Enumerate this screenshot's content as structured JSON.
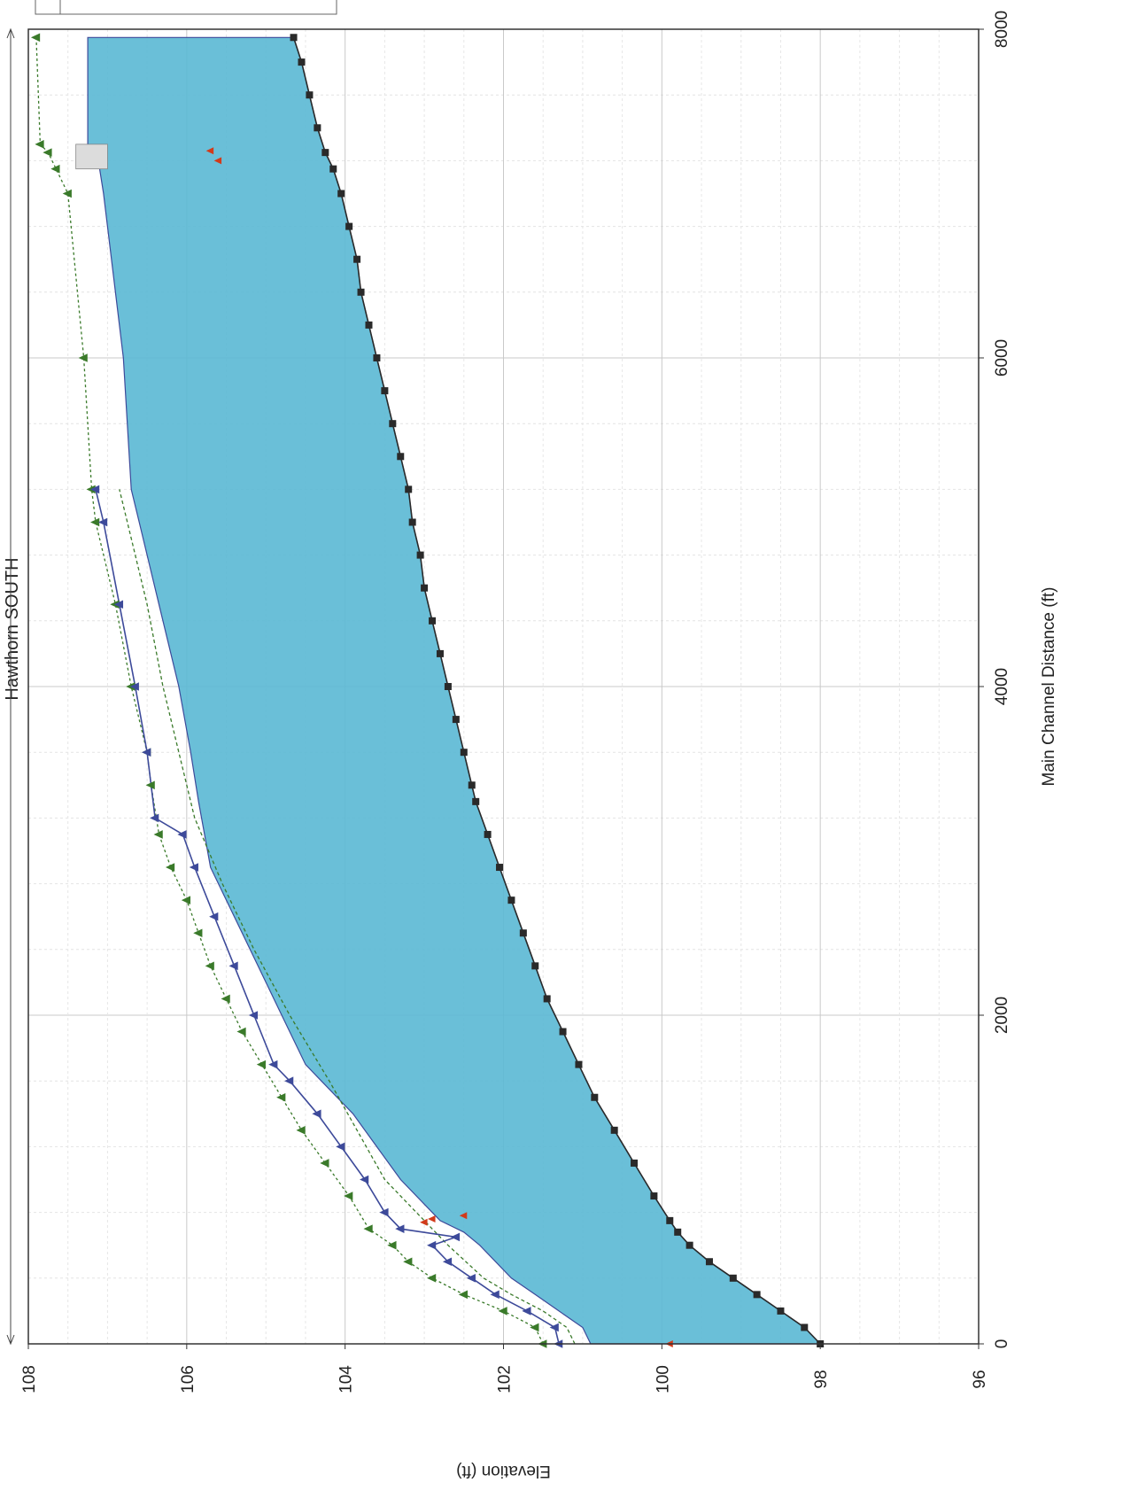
{
  "chart_data": {
    "type": "line",
    "title": "Hawthorn SOUTH",
    "xlabel": "Main Channel Distance (ft)",
    "ylabel": "Elevation (ft)",
    "xlim": [
      0,
      8000
    ],
    "ylim": [
      96,
      108
    ],
    "x_ticks": [
      "0",
      "2000",
      "4000",
      "6000",
      "8000"
    ],
    "y_ticks": [
      "96",
      "98",
      "100",
      "102",
      "104",
      "106",
      "108"
    ],
    "grid": true,
    "orientation": "rotated-90-clockwise",
    "series": [
      {
        "role": "ground",
        "color": "#2a2a2a",
        "x": [
          0,
          100,
          200,
          300,
          400,
          500,
          600,
          680,
          750,
          900,
          1100,
          1300,
          1500,
          1700,
          1900,
          2100,
          2300,
          2500,
          2700,
          2900,
          3100,
          3300,
          3400,
          3600,
          3800,
          4000,
          4200,
          4400,
          4600,
          4800,
          5000,
          5200,
          5400,
          5600,
          5800,
          6000,
          6200,
          6400,
          6600,
          6800,
          7000,
          7150,
          7250,
          7400,
          7600,
          7800,
          7950
        ],
        "y": [
          98.0,
          98.2,
          98.5,
          98.8,
          99.1,
          99.4,
          99.65,
          99.8,
          99.9,
          100.1,
          100.35,
          100.6,
          100.85,
          101.05,
          101.25,
          101.45,
          101.6,
          101.75,
          101.9,
          102.05,
          102.2,
          102.35,
          102.4,
          102.5,
          102.6,
          102.7,
          102.8,
          102.9,
          103.0,
          103.05,
          103.15,
          103.2,
          103.3,
          103.4,
          103.5,
          103.6,
          103.7,
          103.8,
          103.85,
          103.95,
          104.05,
          104.15,
          104.25,
          104.35,
          104.45,
          104.55,
          104.65
        ]
      },
      {
        "role": "water-surface-fill",
        "color": "#5ab8d4",
        "x": [
          0,
          100,
          200,
          300,
          400,
          600,
          680,
          750,
          800,
          1000,
          1200,
          1400,
          1600,
          1700,
          2000,
          2300,
          2900,
          3300,
          3600,
          4000,
          4500,
          5000,
          5200,
          6000,
          7000,
          7150,
          7250,
          7300,
          7950
        ],
        "y": [
          100.9,
          101.0,
          101.3,
          101.6,
          101.9,
          102.3,
          102.5,
          102.8,
          102.9,
          103.3,
          103.6,
          103.9,
          104.3,
          104.5,
          104.8,
          105.1,
          105.7,
          105.85,
          105.95,
          106.1,
          106.35,
          106.6,
          106.7,
          106.8,
          107.05,
          107.1,
          107.2,
          107.25,
          107.25
        ]
      },
      {
        "role": "upper-profile",
        "color": "#3a7a2a",
        "x": [
          0,
          100,
          200,
          300,
          400,
          500,
          600,
          700,
          900,
          1100,
          1300,
          1500,
          1700,
          1900,
          2100,
          2300,
          2500,
          2700,
          2900,
          3100,
          3400,
          3600,
          4000,
          4500,
          5000,
          5200,
          6000,
          7000,
          7150,
          7250,
          7300,
          7950
        ],
        "y": [
          101.5,
          101.6,
          102.0,
          102.5,
          102.9,
          103.2,
          103.4,
          103.7,
          103.95,
          104.25,
          104.55,
          104.8,
          105.05,
          105.3,
          105.5,
          105.7,
          105.85,
          106.0,
          106.2,
          106.35,
          106.45,
          106.5,
          106.7,
          106.9,
          107.15,
          107.2,
          107.3,
          107.5,
          107.65,
          107.75,
          107.85,
          107.9
        ]
      },
      {
        "role": "middle-profile",
        "color": "#3d4a9a",
        "x": [
          0,
          100,
          200,
          300,
          400,
          500,
          600,
          650,
          700,
          800,
          1000,
          1200,
          1400,
          1600,
          1700,
          2000,
          2300,
          2600,
          2900,
          3100,
          3200,
          3600,
          4000,
          4500,
          5000,
          5200
        ],
        "y": [
          101.3,
          101.35,
          101.7,
          102.1,
          102.4,
          102.7,
          102.9,
          102.6,
          103.3,
          103.5,
          103.75,
          104.05,
          104.35,
          104.7,
          104.9,
          105.15,
          105.4,
          105.65,
          105.9,
          106.05,
          106.4,
          106.5,
          106.65,
          106.85,
          107.05,
          107.15
        ]
      },
      {
        "role": "dashed-profile",
        "color": "#3a7a2a",
        "x": [
          0,
          100,
          200,
          300,
          400,
          600,
          800,
          1000,
          1300,
          1600,
          2000,
          2400,
          2800,
          3200,
          3600,
          4000,
          4500,
          5000,
          5200
        ],
        "y": [
          101.1,
          101.2,
          101.5,
          101.9,
          102.25,
          102.7,
          103.1,
          103.5,
          103.85,
          104.2,
          104.7,
          105.15,
          105.55,
          105.9,
          106.1,
          106.3,
          106.5,
          106.75,
          106.85
        ]
      }
    ],
    "annotations": [
      {
        "role": "red-markers",
        "color": "#d23a1a",
        "x": [
          0,
          740,
          760,
          780,
          7200,
          7260
        ],
        "y": [
          99.9,
          103.0,
          102.9,
          102.5,
          105.6,
          105.7
        ]
      }
    ]
  }
}
